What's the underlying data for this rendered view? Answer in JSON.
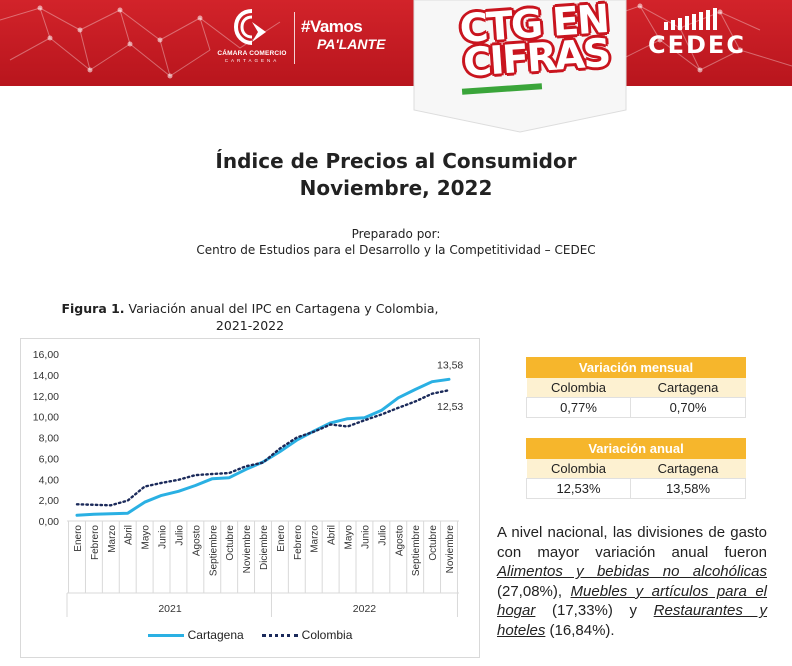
{
  "header": {
    "chamber_name": "CÁMARA COMERCIO",
    "chamber_city": "CARTAGENA",
    "slogan_line1": "#Vamos",
    "slogan_line2": "PA'LANTE",
    "series_line1": "CTG EN",
    "series_line2": "CIFRAS",
    "org": "CEDEC",
    "colors": {
      "banner": "#d2232a",
      "accent_green": "#3aa53a",
      "table_header": "#f6b62c"
    }
  },
  "document": {
    "title_line1": "Índice de Precios al Consumidor",
    "title_line2": "Noviembre, 2022",
    "prepared_by_label": "Preparado por:",
    "prepared_by_org": "Centro de Estudios para el Desarrollo y la Competitividad – CEDEC"
  },
  "figure": {
    "label": "Figura 1.",
    "caption_line1": "Variación anual del IPC en Cartagena y Colombia,",
    "caption_line2": "2021-2022"
  },
  "chart_data": {
    "type": "line",
    "title": "Variación anual del IPC en Cartagena y Colombia, 2021-2022",
    "xlabel": "",
    "ylabel": "",
    "ylim": [
      0,
      16
    ],
    "yticks": [
      "0,00",
      "2,00",
      "4,00",
      "6,00",
      "8,00",
      "10,00",
      "12,00",
      "14,00",
      "16,00"
    ],
    "grid": false,
    "legend_position": "bottom",
    "categories": [
      "Enero",
      "Febrero",
      "Marzo",
      "Abril",
      "Mayo",
      "Junio",
      "Julio",
      "Agosto",
      "Septiembre",
      "Octubre",
      "Noviembre",
      "Diciembre",
      "Enero",
      "Febrero",
      "Marzo",
      "Abril",
      "Mayo",
      "Junio",
      "Julio",
      "Agosto",
      "Septiembre",
      "Octubre",
      "Noviembre"
    ],
    "groups": [
      {
        "label": "2021",
        "start": 0,
        "end": 11
      },
      {
        "label": "2022",
        "start": 12,
        "end": 22
      }
    ],
    "series": [
      {
        "name": "Cartagena",
        "style": "solid",
        "color": "#2ab0e3",
        "values": [
          0.55,
          0.65,
          0.7,
          0.75,
          1.8,
          2.45,
          2.85,
          3.4,
          4.05,
          4.15,
          4.95,
          5.65,
          6.65,
          7.75,
          8.6,
          9.4,
          9.8,
          9.9,
          10.6,
          11.8,
          12.6,
          13.35,
          13.58
        ]
      },
      {
        "name": "Colombia",
        "style": "dotted",
        "color": "#1b2a5a",
        "values": [
          1.6,
          1.55,
          1.5,
          1.95,
          3.3,
          3.65,
          3.95,
          4.4,
          4.5,
          4.6,
          5.25,
          5.6,
          6.95,
          8.0,
          8.55,
          9.25,
          9.05,
          9.65,
          10.2,
          10.85,
          11.45,
          12.2,
          12.53
        ]
      }
    ],
    "annotations": [
      {
        "series": "Cartagena",
        "index": 22,
        "text": "13,58"
      },
      {
        "series": "Colombia",
        "index": 22,
        "text": "12,53"
      }
    ]
  },
  "tables": {
    "monthly": {
      "title": "Variación mensual",
      "headers": [
        "Colombia",
        "Cartagena"
      ],
      "values": [
        "0,77%",
        "0,70%"
      ]
    },
    "annual": {
      "title": "Variación anual",
      "headers": [
        "Colombia",
        "Cartagena"
      ],
      "values": [
        "12,53%",
        "13,58%"
      ]
    }
  },
  "paragraph": {
    "intro": "A nivel nacional, las divisiones de gasto con mayor variación anual fueron ",
    "item1": "Alimentos y bebidas no alcohólicas",
    "item1_value": " (27,08%), ",
    "item2": "Muebles y artículos para el hogar",
    "item2_value": " (17,33%) y ",
    "item3": "Restaurantes y hoteles",
    "item3_value": " (16,84%)."
  }
}
